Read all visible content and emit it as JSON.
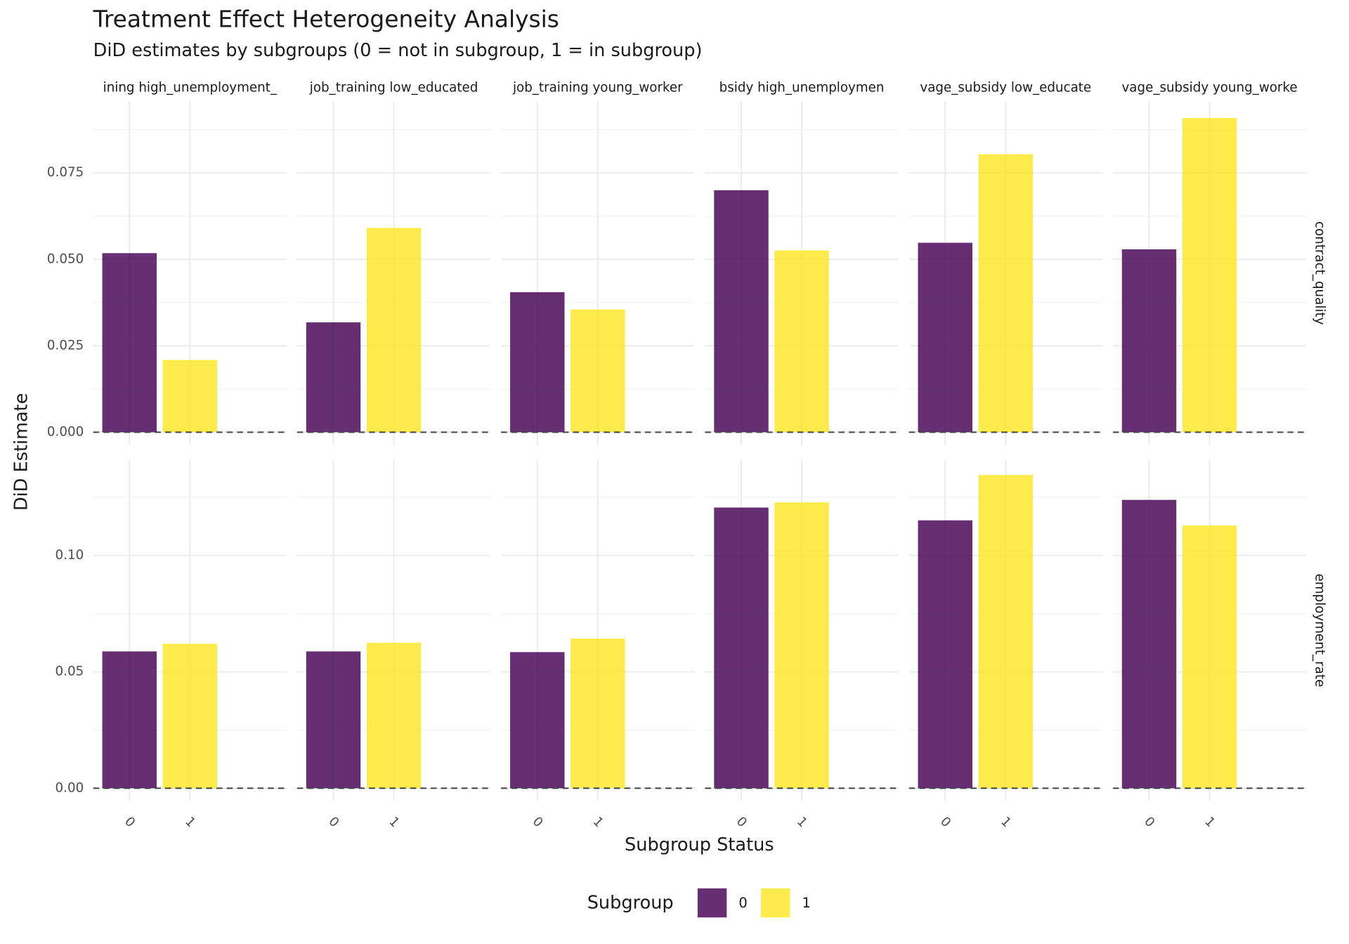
{
  "chart_data": {
    "type": "bar",
    "title": "Treatment Effect Heterogeneity Analysis",
    "subtitle": "DiD estimates by subgroups (0 = not in subgroup, 1 = in subgroup)",
    "x_label": "Subgroup Status",
    "y_label": "DiD Estimate",
    "legend_title": "Subgroup",
    "legend_position": "bottom",
    "grid": true,
    "reference_line": 0,
    "categories": [
      "0",
      "1"
    ],
    "series": [
      {
        "name": "0",
        "color": "#440154"
      },
      {
        "name": "1",
        "color": "#FDE725"
      }
    ],
    "columns": [
      "ining high_unemployment_",
      "job_training low_educated",
      "job_training young_worker",
      "bsidy high_unemploymen",
      "vage_subsidy low_educate",
      "vage_subsidy young_worke"
    ],
    "rows": [
      {
        "label": "contract_quality",
        "ylim": [
          -0.0037,
          0.0958
        ],
        "yticks": [
          {
            "value": 0,
            "label": "0.000"
          },
          {
            "value": 0.025,
            "label": "0.025"
          },
          {
            "value": 0.05,
            "label": "0.050"
          },
          {
            "value": 0.075,
            "label": "0.075"
          }
        ],
        "values": [
          [
            0.0518,
            0.0209
          ],
          [
            0.0318,
            0.0591
          ],
          [
            0.0405,
            0.0355
          ],
          [
            0.07,
            0.0526
          ],
          [
            0.0548,
            0.0804
          ],
          [
            0.0529,
            0.0909
          ]
        ]
      },
      {
        "label": "employment_rate",
        "ylim": [
          -0.0055,
          0.1412
        ],
        "yticks": [
          {
            "value": 0,
            "label": "0.00"
          },
          {
            "value": 0.05,
            "label": "0.05"
          },
          {
            "value": 0.1,
            "label": "0.10"
          }
        ],
        "values": [
          [
            0.0588,
            0.0621
          ],
          [
            0.0588,
            0.0625
          ],
          [
            0.0585,
            0.0643
          ],
          [
            0.1206,
            0.1228
          ],
          [
            0.1151,
            0.1346
          ],
          [
            0.1239,
            0.1129
          ]
        ]
      }
    ]
  }
}
